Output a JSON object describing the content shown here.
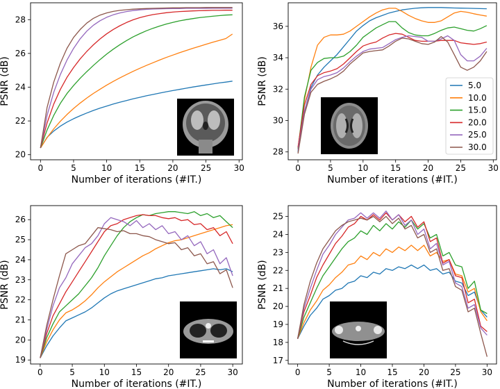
{
  "chart_data": [
    {
      "type": "line",
      "panel": "top-left",
      "title": "",
      "xlabel": "Number of iterations (#IT.)",
      "ylabel": "PSNR (dB)",
      "xlim": [
        -1.5,
        30.5
      ],
      "ylim": [
        19.7,
        29.0
      ],
      "xticks": [
        0,
        5,
        10,
        15,
        20,
        25,
        30
      ],
      "yticks": [
        20,
        22,
        24,
        26,
        28
      ],
      "inset": "brain-mri-coronal",
      "legend": null,
      "x": [
        0,
        1,
        2,
        3,
        4,
        5,
        6,
        7,
        8,
        9,
        10,
        11,
        12,
        13,
        14,
        15,
        16,
        17,
        18,
        19,
        20,
        21,
        22,
        23,
        24,
        25,
        26,
        27,
        28,
        29
      ],
      "series": [
        {
          "name": "5.0",
          "values": [
            20.4,
            21.03,
            21.4,
            21.69,
            21.93,
            22.13,
            22.31,
            22.47,
            22.62,
            22.76,
            22.88,
            23.0,
            23.11,
            23.21,
            23.31,
            23.4,
            23.49,
            23.57,
            23.65,
            23.73,
            23.8,
            23.87,
            23.94,
            24.01,
            24.07,
            24.13,
            24.19,
            24.25,
            24.3,
            24.36
          ]
        },
        {
          "name": "10.0",
          "values": [
            20.4,
            21.01,
            21.53,
            21.98,
            22.38,
            22.74,
            23.06,
            23.36,
            23.63,
            23.88,
            24.12,
            24.34,
            24.55,
            24.75,
            24.94,
            25.12,
            25.29,
            25.45,
            25.61,
            25.76,
            25.9,
            26.04,
            26.17,
            26.3,
            26.42,
            26.54,
            26.66,
            26.77,
            26.88,
            27.15
          ]
        },
        {
          "name": "15.0",
          "values": [
            20.4,
            21.46,
            22.33,
            23.04,
            23.62,
            24.1,
            24.53,
            24.92,
            25.29,
            25.64,
            25.96,
            26.25,
            26.52,
            26.76,
            26.98,
            27.17,
            27.34,
            27.49,
            27.62,
            27.74,
            27.84,
            27.93,
            28.0,
            28.06,
            28.12,
            28.16,
            28.2,
            28.24,
            28.27,
            28.29
          ]
        },
        {
          "name": "20.0",
          "values": [
            20.4,
            21.88,
            23.0,
            23.87,
            24.58,
            25.17,
            25.68,
            26.12,
            26.51,
            26.86,
            27.16,
            27.42,
            27.64,
            27.83,
            27.99,
            28.12,
            28.22,
            28.3,
            28.36,
            28.41,
            28.45,
            28.48,
            28.5,
            28.52,
            28.53,
            28.54,
            28.55,
            28.55,
            28.56,
            28.56
          ]
        },
        {
          "name": "25.0",
          "values": [
            20.4,
            22.33,
            23.7,
            24.75,
            25.6,
            26.3,
            26.87,
            27.32,
            27.67,
            27.94,
            28.14,
            28.29,
            28.4,
            28.48,
            28.54,
            28.58,
            28.61,
            28.63,
            28.64,
            28.65,
            28.66,
            28.66,
            28.67,
            28.67,
            28.67,
            28.67,
            28.68,
            28.68,
            28.68,
            28.68
          ]
        },
        {
          "name": "30.0",
          "values": [
            20.4,
            22.8,
            24.3,
            25.42,
            26.3,
            26.95,
            27.42,
            27.8,
            28.08,
            28.27,
            28.4,
            28.49,
            28.55,
            28.59,
            28.62,
            28.64,
            28.66,
            28.67,
            28.68,
            28.69,
            28.7,
            28.7,
            28.71,
            28.71,
            28.71,
            28.72,
            28.72,
            28.72,
            28.72,
            28.72
          ]
        }
      ]
    },
    {
      "type": "line",
      "panel": "top-right",
      "title": "",
      "xlabel": "Number of iterations (#IT.)",
      "ylabel": "PSNR (dB)",
      "xlim": [
        -1.5,
        30.5
      ],
      "ylim": [
        27.5,
        37.5
      ],
      "xticks": [
        0,
        5,
        10,
        15,
        20,
        25,
        30
      ],
      "yticks": [
        28,
        30,
        32,
        34,
        36
      ],
      "inset": "brain-mri-axial",
      "legend": {
        "position": "right",
        "entries": [
          "5.0",
          "10.0",
          "15.0",
          "20.0",
          "25.0",
          "30.0"
        ]
      },
      "x": [
        0,
        1,
        2,
        3,
        4,
        5,
        6,
        7,
        8,
        9,
        10,
        11,
        12,
        13,
        14,
        15,
        16,
        17,
        18,
        19,
        20,
        21,
        22,
        23,
        24,
        25,
        26,
        27,
        28,
        29
      ],
      "series": [
        {
          "name": "5.0",
          "values": [
            28.0,
            30.6,
            32.1,
            32.9,
            33.4,
            33.8,
            34.2,
            34.7,
            35.2,
            35.7,
            36.05,
            36.35,
            36.55,
            36.7,
            36.85,
            36.95,
            37.05,
            37.1,
            37.15,
            37.18,
            37.2,
            37.2,
            37.2,
            37.18,
            37.17,
            37.16,
            37.15,
            37.14,
            37.13,
            37.12
          ]
        },
        {
          "name": "10.0",
          "values": [
            28.2,
            31.3,
            33.4,
            34.8,
            35.3,
            35.45,
            35.45,
            35.5,
            35.7,
            36.0,
            36.3,
            36.6,
            36.85,
            37.05,
            37.15,
            37.15,
            36.95,
            36.7,
            36.5,
            36.35,
            36.25,
            36.25,
            36.35,
            36.6,
            36.85,
            36.95,
            36.9,
            36.8,
            36.72,
            36.65
          ]
        },
        {
          "name": "15.0",
          "values": [
            28.2,
            31.5,
            33.2,
            33.7,
            33.95,
            34.0,
            34.0,
            34.1,
            34.4,
            34.8,
            35.3,
            35.6,
            35.9,
            36.1,
            36.3,
            36.3,
            35.9,
            35.6,
            35.45,
            35.4,
            35.4,
            35.55,
            35.75,
            35.9,
            35.95,
            35.85,
            35.75,
            35.7,
            35.85,
            36.05
          ]
        },
        {
          "name": "20.0",
          "values": [
            28.3,
            31.0,
            32.3,
            32.85,
            33.05,
            33.15,
            33.3,
            33.6,
            34.0,
            34.4,
            34.75,
            34.9,
            35.0,
            35.25,
            35.45,
            35.55,
            35.5,
            35.3,
            35.1,
            35.05,
            35.05,
            35.05,
            35.1,
            35.1,
            35.1,
            34.95,
            34.9,
            34.85,
            34.9,
            35.0
          ]
        },
        {
          "name": "25.0",
          "values": [
            28.1,
            30.6,
            32.0,
            32.6,
            32.8,
            32.9,
            33.05,
            33.35,
            33.75,
            34.1,
            34.4,
            34.55,
            34.6,
            34.65,
            34.9,
            35.15,
            35.3,
            35.4,
            35.35,
            35.3,
            35.05,
            35.05,
            35.2,
            35.4,
            35.1,
            34.2,
            33.8,
            33.8,
            34.1,
            34.6
          ]
        },
        {
          "name": "30.0",
          "values": [
            27.9,
            30.4,
            31.8,
            32.3,
            32.5,
            32.65,
            32.85,
            33.15,
            33.6,
            33.95,
            34.3,
            34.4,
            34.45,
            34.5,
            34.75,
            35.05,
            35.25,
            35.2,
            35.05,
            34.9,
            34.85,
            35.0,
            35.35,
            35.0,
            34.2,
            33.4,
            33.2,
            33.4,
            33.8,
            34.4
          ]
        }
      ]
    },
    {
      "type": "line",
      "panel": "bottom-left",
      "title": "",
      "xlabel": "Number of iterations (#IT.)",
      "ylabel": "PSNR (dB)",
      "xlim": [
        -1.5,
        31.5
      ],
      "ylim": [
        18.8,
        26.7
      ],
      "xticks": [
        0,
        5,
        10,
        15,
        20,
        25,
        30
      ],
      "yticks": [
        19,
        20,
        21,
        22,
        23,
        24,
        25,
        26
      ],
      "inset": "ct-chest",
      "legend": null,
      "x": [
        0,
        1,
        2,
        3,
        4,
        5,
        6,
        7,
        8,
        9,
        10,
        11,
        12,
        13,
        14,
        15,
        16,
        17,
        18,
        19,
        20,
        21,
        22,
        23,
        24,
        25,
        26,
        27,
        28,
        29,
        30
      ],
      "series": [
        {
          "name": "5.0",
          "values": [
            19.1,
            19.7,
            20.2,
            20.6,
            20.95,
            21.1,
            21.25,
            21.4,
            21.6,
            21.85,
            22.1,
            22.3,
            22.45,
            22.55,
            22.65,
            22.75,
            22.85,
            22.95,
            23.05,
            23.1,
            23.2,
            23.25,
            23.3,
            23.35,
            23.4,
            23.45,
            23.5,
            23.55,
            23.5,
            23.55,
            23.4
          ]
        },
        {
          "name": "10.0",
          "values": [
            19.1,
            19.9,
            20.5,
            21.0,
            21.35,
            21.5,
            21.7,
            21.95,
            22.25,
            22.6,
            22.9,
            23.15,
            23.4,
            23.6,
            23.8,
            24.0,
            24.2,
            24.35,
            24.55,
            24.7,
            24.85,
            24.95,
            25.0,
            25.1,
            25.2,
            25.3,
            25.4,
            25.5,
            25.6,
            25.7,
            25.75
          ]
        },
        {
          "name": "15.0",
          "values": [
            19.1,
            20.1,
            20.8,
            21.4,
            21.7,
            22.0,
            22.3,
            22.7,
            23.1,
            23.6,
            24.2,
            24.7,
            25.2,
            25.6,
            25.9,
            26.1,
            26.25,
            26.2,
            26.3,
            26.35,
            26.4,
            26.4,
            26.35,
            26.3,
            26.4,
            26.2,
            26.3,
            26.1,
            26.2,
            25.9,
            25.6
          ]
        },
        {
          "name": "20.0",
          "values": [
            19.1,
            20.3,
            21.2,
            21.8,
            22.4,
            22.9,
            23.4,
            23.9,
            24.4,
            24.9,
            25.4,
            25.7,
            25.8,
            26.0,
            26.1,
            26.2,
            26.25,
            26.2,
            26.2,
            26.1,
            26.05,
            26.1,
            25.95,
            26.0,
            25.75,
            25.8,
            25.5,
            25.6,
            25.2,
            25.4,
            24.8
          ]
        },
        {
          "name": "25.0",
          "values": [
            19.1,
            20.5,
            21.7,
            22.6,
            23.1,
            23.8,
            24.2,
            24.6,
            24.8,
            25.2,
            25.8,
            26.1,
            26.0,
            25.9,
            25.7,
            25.95,
            25.6,
            25.8,
            25.5,
            25.7,
            25.3,
            25.4,
            25.0,
            25.2,
            24.7,
            24.9,
            24.3,
            24.5,
            23.8,
            24.1,
            23.2
          ]
        },
        {
          "name": "30.0",
          "values": [
            19.1,
            20.7,
            22.0,
            23.2,
            24.3,
            24.5,
            24.7,
            24.8,
            25.2,
            25.6,
            25.55,
            25.5,
            25.4,
            25.45,
            25.3,
            25.3,
            25.2,
            25.15,
            25.0,
            24.9,
            24.8,
            24.85,
            24.5,
            24.6,
            24.2,
            24.3,
            23.8,
            23.9,
            23.3,
            23.5,
            22.6
          ]
        }
      ]
    },
    {
      "type": "line",
      "panel": "bottom-right",
      "title": "",
      "xlabel": "Number of iterations (#IT.)",
      "ylabel": "PSNR (dB)",
      "xlim": [
        -1.5,
        31.5
      ],
      "ylim": [
        16.8,
        25.6
      ],
      "xticks": [
        0,
        5,
        10,
        15,
        20,
        25,
        30
      ],
      "yticks": [
        17,
        18,
        19,
        20,
        21,
        22,
        23,
        24,
        25
      ],
      "inset": "ct-shoulders",
      "legend": null,
      "x": [
        0,
        1,
        2,
        3,
        4,
        5,
        6,
        7,
        8,
        9,
        10,
        11,
        12,
        13,
        14,
        15,
        16,
        17,
        18,
        19,
        20,
        21,
        22,
        23,
        24,
        25,
        26,
        27,
        28,
        29,
        30
      ],
      "series": [
        {
          "name": "5.0",
          "values": [
            18.2,
            18.9,
            19.5,
            19.9,
            20.4,
            20.6,
            20.9,
            21.0,
            21.3,
            21.4,
            21.7,
            21.6,
            21.9,
            21.8,
            22.1,
            22.0,
            22.2,
            22.1,
            22.3,
            22.1,
            22.3,
            22.0,
            22.1,
            21.8,
            21.9,
            21.4,
            21.3,
            20.6,
            20.8,
            19.8,
            19.4
          ]
        },
        {
          "name": "10.0",
          "values": [
            18.2,
            19.1,
            19.8,
            20.3,
            20.9,
            21.2,
            21.6,
            21.9,
            22.3,
            22.4,
            22.8,
            22.6,
            23.0,
            22.8,
            23.2,
            23.0,
            23.3,
            23.1,
            23.4,
            23.1,
            23.4,
            22.8,
            23.0,
            22.5,
            22.6,
            21.8,
            21.7,
            20.8,
            21.0,
            19.7,
            19.2
          ]
        },
        {
          "name": "15.0",
          "values": [
            18.2,
            19.4,
            20.2,
            21.0,
            21.7,
            22.2,
            22.7,
            23.2,
            23.6,
            23.8,
            24.2,
            24.0,
            24.5,
            24.2,
            24.6,
            24.3,
            24.7,
            24.4,
            24.8,
            24.3,
            24.6,
            23.8,
            24.0,
            22.8,
            23.0,
            22.3,
            22.2,
            21.0,
            21.4,
            19.8,
            19.6
          ]
        },
        {
          "name": "20.0",
          "values": [
            18.2,
            19.7,
            20.6,
            21.6,
            22.3,
            22.9,
            23.5,
            23.9,
            24.4,
            24.6,
            25.0,
            24.8,
            25.1,
            24.8,
            25.2,
            24.8,
            25.1,
            24.7,
            25.0,
            24.4,
            24.7,
            23.6,
            23.8,
            22.4,
            22.6,
            21.7,
            21.6,
            20.2,
            20.4,
            18.9,
            18.6
          ]
        },
        {
          "name": "25.0",
          "values": [
            18.2,
            19.9,
            21.0,
            22.0,
            22.9,
            23.4,
            24.0,
            24.4,
            24.8,
            24.9,
            25.2,
            24.9,
            25.2,
            24.9,
            25.3,
            24.8,
            25.1,
            24.5,
            24.8,
            24.0,
            24.3,
            23.2,
            23.5,
            22.3,
            22.5,
            21.3,
            21.1,
            19.9,
            20.1,
            18.8,
            18.4
          ]
        },
        {
          "name": "30.0",
          "values": [
            18.2,
            20.1,
            21.4,
            22.4,
            23.2,
            23.7,
            24.2,
            24.5,
            24.7,
            24.8,
            24.9,
            24.8,
            25.0,
            24.7,
            25.0,
            24.6,
            24.9,
            24.3,
            24.5,
            23.8,
            24.0,
            23.0,
            23.2,
            22.0,
            22.1,
            21.1,
            20.9,
            19.7,
            19.9,
            18.5,
            17.2
          ]
        }
      ]
    }
  ],
  "colors": {
    "5.0": "#1f77b4",
    "10.0": "#ff7f0e",
    "15.0": "#2ca02c",
    "20.0": "#d62728",
    "25.0": "#9467bd",
    "30.0": "#8c564b"
  }
}
